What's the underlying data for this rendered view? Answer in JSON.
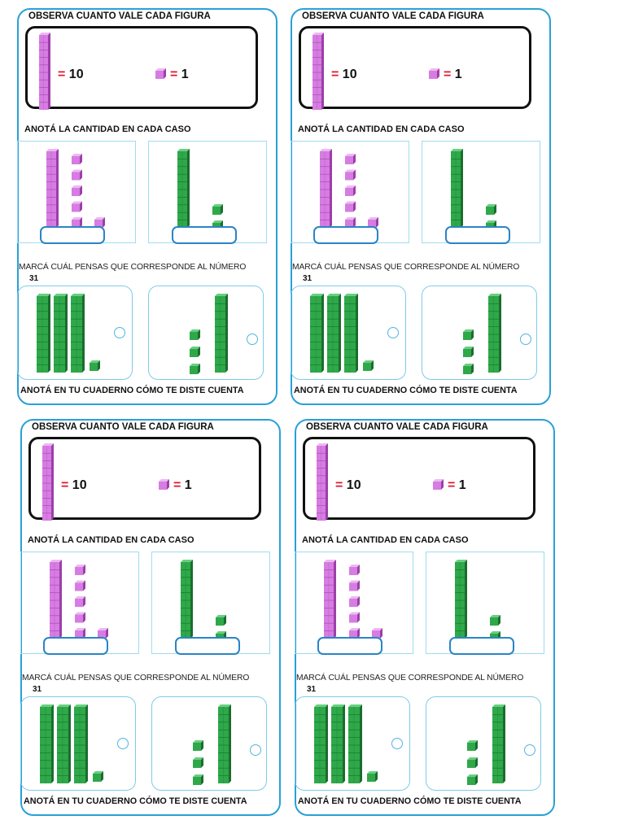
{
  "cards": [
    {
      "title": "OBSERVA CUANTO VALE CADA FIGURA",
      "ten_value": "10",
      "one_value": "1",
      "equals_sign": "=",
      "instruction_amount": "ANOTÁ LA CANTIDAD EN CADA CASO",
      "instruction_mark": "MARCÁ CUÁL PENSAS QUE CORRESPONDE AL NÚMERO",
      "target_number": "31",
      "footer": "ANOTÁ  EN  TU  CUADERNO  CÓMO TE DISTE CUENTA",
      "case_a": {
        "tens": 1,
        "ones": 6,
        "color": "purple"
      },
      "case_b": {
        "tens": 1,
        "ones": 2,
        "color": "green"
      },
      "option_a": {
        "tens": 3,
        "ones": 1,
        "color": "green"
      },
      "option_b": {
        "tens": 1,
        "ones": 3,
        "color": "green"
      }
    },
    {
      "title": "OBSERVA CUANTO VALE CADA FIGURA",
      "ten_value": "10",
      "one_value": "1",
      "equals_sign": "=",
      "instruction_amount": "ANOTÁ LA CANTIDAD EN CADA CASO",
      "instruction_mark": "MARCÁ CUÁL PENSAS QUE CORRESPONDE AL NÚMERO",
      "target_number": "31",
      "footer": "ANOTÁ  EN  TU  CUADERNO  CÓMO TE DISTE CUENTA",
      "case_a": {
        "tens": 1,
        "ones": 6,
        "color": "purple"
      },
      "case_b": {
        "tens": 1,
        "ones": 2,
        "color": "green"
      },
      "option_a": {
        "tens": 3,
        "ones": 1,
        "color": "green"
      },
      "option_b": {
        "tens": 1,
        "ones": 3,
        "color": "green"
      }
    },
    {
      "title": "OBSERVA CUANTO VALE CADA FIGURA",
      "ten_value": "10",
      "one_value": "1",
      "equals_sign": "=",
      "instruction_amount": "ANOTÁ LA CANTIDAD EN CADA CASO",
      "instruction_mark": "MARCÁ CUÁL PENSAS QUE CORRESPONDE AL NÚMERO",
      "target_number": "31",
      "footer": "ANOTÁ  EN  TU  CUADERNO  CÓMO TE DISTE CUENTA",
      "case_a": {
        "tens": 1,
        "ones": 6,
        "color": "purple"
      },
      "case_b": {
        "tens": 1,
        "ones": 2,
        "color": "green"
      },
      "option_a": {
        "tens": 3,
        "ones": 1,
        "color": "green"
      },
      "option_b": {
        "tens": 1,
        "ones": 3,
        "color": "green"
      }
    },
    {
      "title": "OBSERVA CUANTO VALE CADA FIGURA",
      "ten_value": "10",
      "one_value": "1",
      "equals_sign": "=",
      "instruction_amount": "ANOTÁ LA CANTIDAD EN CADA CASO",
      "instruction_mark": "MARCÁ CUÁL PENSAS QUE CORRESPONDE AL NÚMERO",
      "target_number": "31",
      "footer": "ANOTÁ  EN  TU  CUADERNO  CÓMO TE DISTE CUENTA",
      "case_a": {
        "tens": 1,
        "ones": 6,
        "color": "purple"
      },
      "case_b": {
        "tens": 1,
        "ones": 2,
        "color": "green"
      },
      "option_a": {
        "tens": 3,
        "ones": 1,
        "color": "green"
      },
      "option_b": {
        "tens": 1,
        "ones": 3,
        "color": "green"
      }
    }
  ],
  "colors": {
    "purple_front": "#d77ce2",
    "purple_side": "#9c3fa9",
    "purple_top": "#ecb8f2",
    "green_front": "#2fa84a",
    "green_side": "#1a6d2d",
    "green_top": "#68cf82",
    "card_border": "#29a0d8",
    "equals_red": "#e0162b"
  }
}
